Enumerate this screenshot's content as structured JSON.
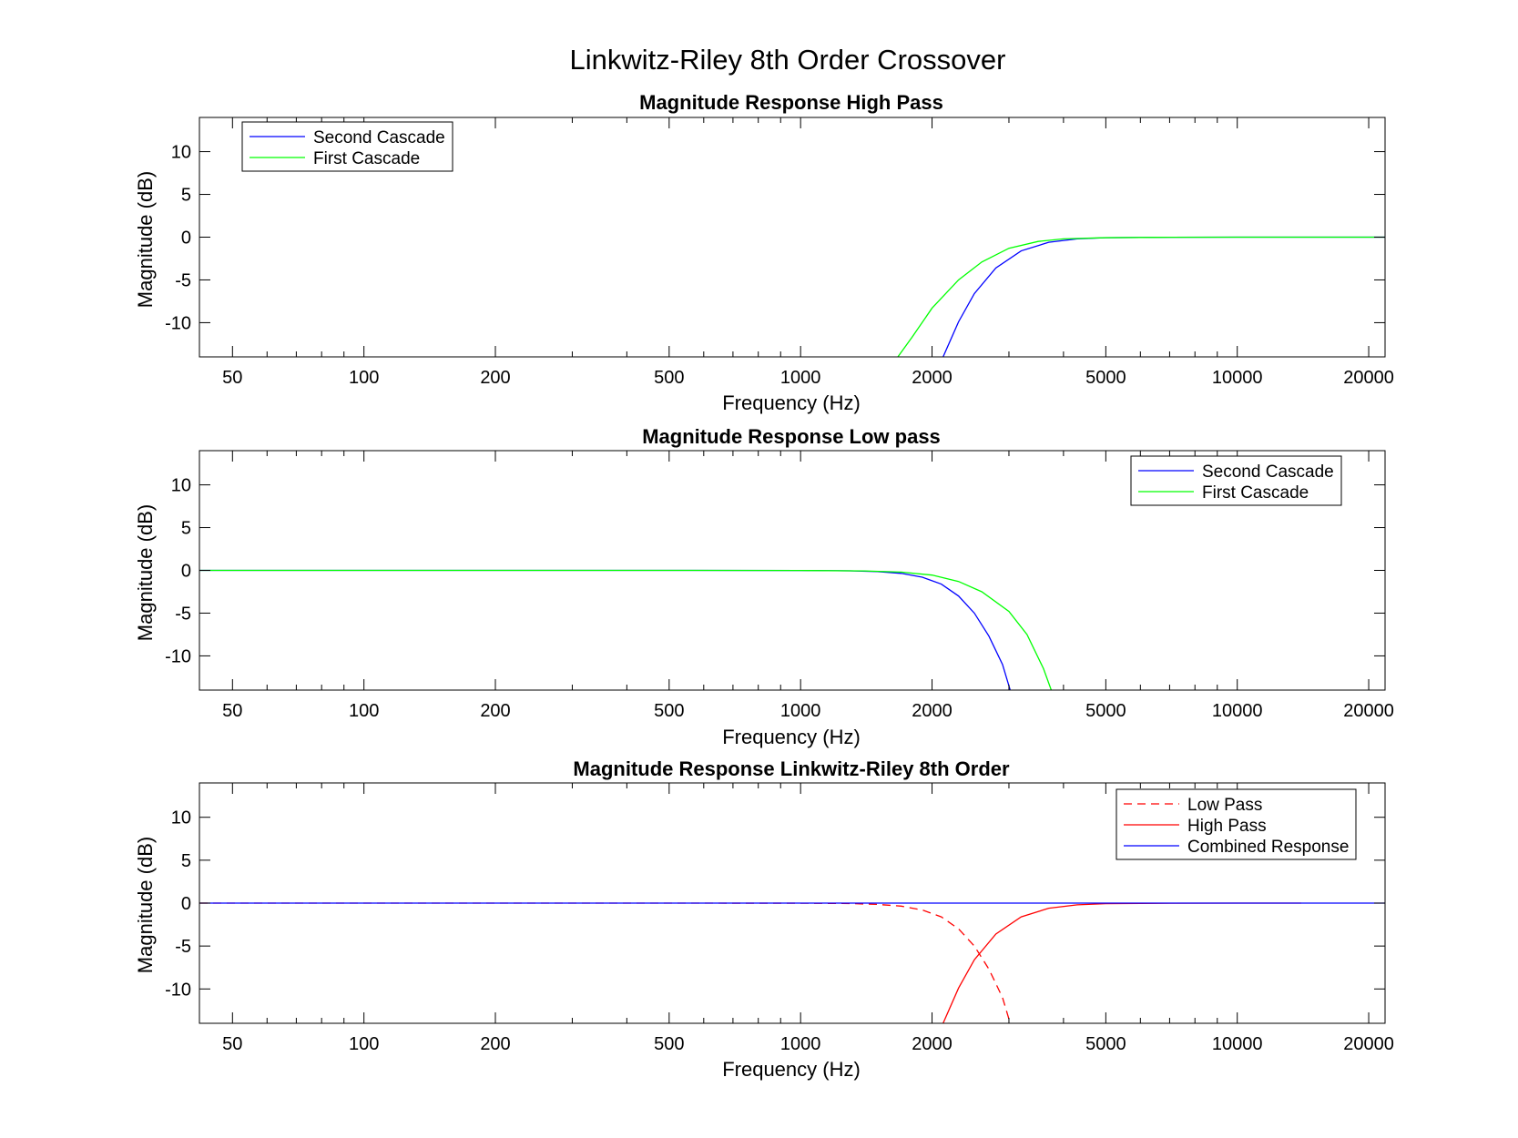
{
  "figure_title": "Linkwitz-Riley 8th Order Crossover",
  "colors": {
    "blue": "#0000ff",
    "green": "#00ff00",
    "red": "#ff0000",
    "axes": "#000000",
    "background": "#ffffff"
  },
  "chart_data": [
    {
      "type": "line",
      "title": "Magnitude Response High Pass",
      "xlabel": "Frequency (Hz)",
      "ylabel": "Magnitude (dB)",
      "xscale": "log",
      "xlim": [
        42,
        21800
      ],
      "ylim": [
        -14,
        14
      ],
      "xticks": [
        50,
        100,
        200,
        500,
        1000,
        2000,
        5000,
        10000,
        20000
      ],
      "xtick_labels": [
        "50",
        "100",
        "200",
        "500",
        "1000",
        "2000",
        "5000",
        "10000",
        "20000"
      ],
      "yticks": [
        -10,
        -5,
        0,
        5,
        10
      ],
      "ytick_labels": [
        "-10",
        "-5",
        "0",
        "5",
        "10"
      ],
      "legend_position": "top-left",
      "grid": false,
      "series": [
        {
          "name": "Second Cascade",
          "color": "#0000ff",
          "style": "solid",
          "x": [
            2120,
            2300,
            2500,
            2800,
            3200,
            3700,
            4300,
            5000,
            7000,
            10000,
            15000,
            21800
          ],
          "y": [
            -14,
            -9.9,
            -6.6,
            -3.6,
            -1.6,
            -0.6,
            -0.2,
            -0.07,
            -0.01,
            0,
            0,
            0
          ]
        },
        {
          "name": "First Cascade",
          "color": "#00ff00",
          "style": "solid",
          "x": [
            1670,
            1800,
            2000,
            2300,
            2600,
            3000,
            3500,
            4000,
            5000,
            7000,
            10000,
            15000,
            21800
          ],
          "y": [
            -14,
            -11.7,
            -8.3,
            -5.0,
            -2.9,
            -1.3,
            -0.5,
            -0.2,
            -0.06,
            -0.01,
            0,
            0,
            0
          ]
        }
      ]
    },
    {
      "type": "line",
      "title": "Magnitude Response Low pass",
      "xlabel": "Frequency (Hz)",
      "ylabel": "Magnitude (dB)",
      "xscale": "log",
      "xlim": [
        42,
        21800
      ],
      "ylim": [
        -14,
        14
      ],
      "xticks": [
        50,
        100,
        200,
        500,
        1000,
        2000,
        5000,
        10000,
        20000
      ],
      "xtick_labels": [
        "50",
        "100",
        "200",
        "500",
        "1000",
        "2000",
        "5000",
        "10000",
        "20000"
      ],
      "yticks": [
        -10,
        -5,
        0,
        5,
        10
      ],
      "ytick_labels": [
        "-10",
        "-5",
        "0",
        "5",
        "10"
      ],
      "legend_position": "top-right",
      "grid": false,
      "series": [
        {
          "name": "Second Cascade",
          "color": "#0000ff",
          "style": "solid",
          "x": [
            42,
            500,
            1000,
            1300,
            1500,
            1700,
            1900,
            2100,
            2300,
            2500,
            2700,
            2900,
            3020
          ],
          "y": [
            0,
            0,
            -0.01,
            -0.05,
            -0.15,
            -0.35,
            -0.8,
            -1.6,
            -3.0,
            -5.0,
            -7.7,
            -11.0,
            -14
          ]
        },
        {
          "name": "First Cascade",
          "color": "#00ff00",
          "style": "solid",
          "x": [
            42,
            500,
            1000,
            1400,
            1700,
            2000,
            2300,
            2600,
            3000,
            3300,
            3600,
            3750
          ],
          "y": [
            0,
            0,
            -0.01,
            -0.07,
            -0.2,
            -0.55,
            -1.3,
            -2.5,
            -4.8,
            -7.5,
            -11.5,
            -14
          ]
        }
      ]
    },
    {
      "type": "line",
      "title": "Magnitude Response Linkwitz-Riley 8th Order",
      "xlabel": "Frequency (Hz)",
      "ylabel": "Magnitude (dB)",
      "xscale": "log",
      "xlim": [
        42,
        21800
      ],
      "ylim": [
        -14,
        14
      ],
      "xticks": [
        50,
        100,
        200,
        500,
        1000,
        2000,
        5000,
        10000,
        20000
      ],
      "xtick_labels": [
        "50",
        "100",
        "200",
        "500",
        "1000",
        "2000",
        "5000",
        "10000",
        "20000"
      ],
      "yticks": [
        -10,
        -5,
        0,
        5,
        10
      ],
      "ytick_labels": [
        "-10",
        "-5",
        "0",
        "5",
        "10"
      ],
      "legend_position": "top-right",
      "grid": false,
      "series": [
        {
          "name": "Low Pass",
          "color": "#ff0000",
          "style": "dashed",
          "x": [
            42,
            500,
            1000,
            1300,
            1500,
            1700,
            1900,
            2100,
            2300,
            2500,
            2700,
            2900,
            3020
          ],
          "y": [
            0,
            0,
            -0.01,
            -0.05,
            -0.15,
            -0.35,
            -0.8,
            -1.6,
            -3.0,
            -5.0,
            -7.7,
            -11.0,
            -14
          ]
        },
        {
          "name": "High Pass",
          "color": "#ff0000",
          "style": "solid",
          "x": [
            2120,
            2300,
            2500,
            2800,
            3200,
            3700,
            4300,
            5000,
            7000,
            10000,
            14000
          ],
          "y": [
            -14,
            -9.9,
            -6.6,
            -3.6,
            -1.6,
            -0.6,
            -0.2,
            -0.07,
            -0.01,
            0,
            0
          ]
        },
        {
          "name": "Combined Response",
          "color": "#0000ff",
          "style": "solid",
          "x": [
            42,
            21800
          ],
          "y": [
            0,
            0
          ]
        }
      ]
    }
  ]
}
